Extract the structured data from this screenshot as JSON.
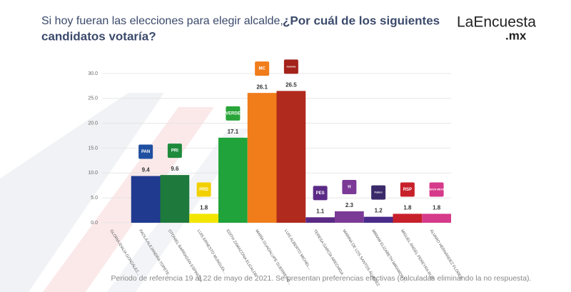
{
  "chart_data": {
    "type": "bar",
    "title": "Si hoy fueran las elecciones para elegir alcalde,",
    "title_bold": "¿Por cuál de los siguientes",
    "title_line2": "candidatos votaría?",
    "brand": "LaEncuesta",
    "brand_suffix": ".mx",
    "footnote": "Periodo de referencia 19 al 22 de mayo de 2021. Se presentan preferencias efectivas (calculadas eliminando la no respuesta).",
    "categories": [
      "GLORIA IDALIA GONZÁLEZ...",
      "PAOLA ALEJANDRA TOPETE...",
      "OTONIEL BARRAGÁN ESPINOZA",
      "LUIS ERNESTO MUNGUÍA...",
      "EDITH ZAMACONA ELIZALDE",
      "MARÍA GUADALUPE GUERRERO...",
      "LUIS ALBERTO MICHEL...",
      "TERESA GARCÍA ARECHIGA",
      "MARINA DE LOS SANTOS ÁLVAREZ",
      "MIRIAM ELIZABETH MIRAMONT...",
      "MIGUEL ÁNGEL PEREYRA RUÍZ",
      "ÁLVARO HERNÁNDEZ FLORES"
    ],
    "values": [
      null,
      9.4,
      9.6,
      1.8,
      17.1,
      26.1,
      26.5,
      1.1,
      2.3,
      1.2,
      1.8,
      1.8
    ],
    "colors": [
      "#999999",
      "#1f3a8f",
      "#1e7a3c",
      "#f2e600",
      "#1fa33a",
      "#f07c1a",
      "#b02a1e",
      "#5b2a86",
      "#7b3a96",
      "#4a2a8a",
      "#c8202a",
      "#d63a8a"
    ],
    "logos": [
      null,
      "PAN",
      "PRI",
      "PRD",
      "VERDE",
      "MC",
      "morena",
      "PES",
      "H",
      "Futuro",
      "RSP",
      "FUERZA MÉXICO"
    ],
    "logo_colors": [
      "#999999",
      "#1f4fa0",
      "#1e8a3c",
      "#f2d000",
      "#2aa53a",
      "#f07c1a",
      "#a3221a",
      "#5b2a86",
      "#7b3a96",
      "#3a2a6a",
      "#c8202a",
      "#d63a8a"
    ],
    "ylim": [
      0,
      30
    ],
    "yticks": [
      {
        "value": 0,
        "label": "0.0"
      },
      {
        "value": 5,
        "label": "5.0"
      },
      {
        "value": 10,
        "label": "10.0"
      },
      {
        "value": 15,
        "label": "15.0"
      },
      {
        "value": 20,
        "label": "20.0"
      },
      {
        "value": 25,
        "label": "25.0"
      },
      {
        "value": 30,
        "label": "30.0"
      }
    ],
    "grid": true
  }
}
